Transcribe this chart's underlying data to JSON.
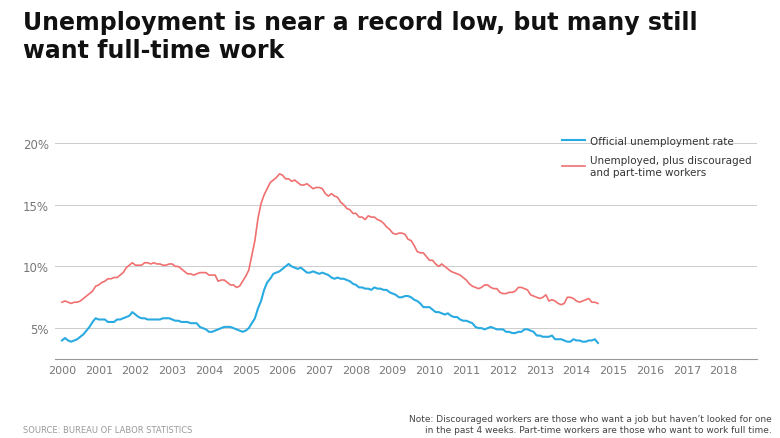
{
  "title_line1": "Unemployment is near a record low, but many still",
  "title_line2": "want full-time work",
  "title_fontsize": 17,
  "source_text": "SOURCE: BUREAU OF LABOR STATISTICS",
  "note_text": "Note: Discouraged workers are those who want a job but haven’t looked for one\nin the past 4 weeks. Part-time workers are those who want to work full time.",
  "legend_label_cyan": "Official unemployment rate",
  "legend_label_red": "Unemployed, plus discouraged\nand part-time workers",
  "cyan_color": "#29ABE2",
  "red_color": "#F07070",
  "background_color": "#FFFFFF",
  "grid_color": "#CCCCCC",
  "ylim": [
    2.5,
    21.0
  ],
  "yticks": [
    5,
    10,
    15,
    20
  ],
  "ytick_labels": [
    "5%",
    "10%",
    "15%",
    "20%"
  ],
  "xticks": [
    2000,
    2001,
    2002,
    2003,
    2004,
    2005,
    2006,
    2007,
    2008,
    2009,
    2010,
    2011,
    2012,
    2013,
    2014,
    2015,
    2016,
    2017,
    2018
  ],
  "official_unemployment": [
    4.0,
    4.2,
    4.0,
    3.9,
    4.0,
    4.1,
    4.3,
    4.5,
    4.8,
    5.1,
    5.5,
    5.8,
    5.7,
    5.7,
    5.7,
    5.5,
    5.5,
    5.5,
    5.7,
    5.7,
    5.8,
    5.9,
    6.0,
    6.3,
    6.1,
    5.9,
    5.8,
    5.8,
    5.7,
    5.7,
    5.7,
    5.7,
    5.7,
    5.8,
    5.8,
    5.8,
    5.7,
    5.6,
    5.6,
    5.5,
    5.5,
    5.5,
    5.4,
    5.4,
    5.4,
    5.1,
    5.0,
    4.9,
    4.7,
    4.7,
    4.8,
    4.9,
    5.0,
    5.1,
    5.1,
    5.1,
    5.0,
    4.9,
    4.8,
    4.7,
    4.8,
    5.0,
    5.4,
    5.8,
    6.6,
    7.2,
    8.1,
    8.7,
    9.0,
    9.4,
    9.5,
    9.6,
    9.8,
    10.0,
    10.2,
    10.0,
    9.9,
    9.8,
    9.9,
    9.7,
    9.5,
    9.5,
    9.6,
    9.5,
    9.4,
    9.5,
    9.4,
    9.3,
    9.1,
    9.0,
    9.1,
    9.0,
    9.0,
    8.9,
    8.8,
    8.6,
    8.5,
    8.3,
    8.3,
    8.2,
    8.2,
    8.1,
    8.3,
    8.2,
    8.2,
    8.1,
    8.1,
    7.9,
    7.8,
    7.7,
    7.5,
    7.5,
    7.6,
    7.6,
    7.5,
    7.3,
    7.2,
    7.0,
    6.7,
    6.7,
    6.7,
    6.5,
    6.3,
    6.3,
    6.2,
    6.1,
    6.2,
    6.0,
    5.9,
    5.9,
    5.7,
    5.6,
    5.6,
    5.5,
    5.4,
    5.1,
    5.0,
    5.0,
    4.9,
    5.0,
    5.1,
    5.0,
    4.9,
    4.9,
    4.9,
    4.7,
    4.7,
    4.6,
    4.6,
    4.7,
    4.7,
    4.9,
    4.9,
    4.8,
    4.7,
    4.4,
    4.4,
    4.3,
    4.3,
    4.3,
    4.4,
    4.1,
    4.1,
    4.1,
    4.0,
    3.9,
    3.9,
    4.1,
    4.0,
    4.0,
    3.9,
    3.9,
    4.0,
    4.0,
    4.1,
    3.8
  ],
  "broad_unemployment": [
    7.1,
    7.2,
    7.1,
    7.0,
    7.1,
    7.1,
    7.2,
    7.4,
    7.6,
    7.8,
    8.0,
    8.4,
    8.5,
    8.7,
    8.8,
    9.0,
    9.0,
    9.1,
    9.1,
    9.3,
    9.5,
    9.9,
    10.1,
    10.3,
    10.1,
    10.1,
    10.1,
    10.3,
    10.3,
    10.2,
    10.3,
    10.2,
    10.2,
    10.1,
    10.1,
    10.2,
    10.2,
    10.0,
    10.0,
    9.8,
    9.6,
    9.4,
    9.4,
    9.3,
    9.4,
    9.5,
    9.5,
    9.5,
    9.3,
    9.3,
    9.3,
    8.8,
    8.9,
    8.9,
    8.7,
    8.5,
    8.5,
    8.3,
    8.4,
    8.8,
    9.2,
    9.7,
    10.9,
    12.1,
    13.9,
    15.1,
    15.8,
    16.3,
    16.8,
    17.0,
    17.2,
    17.5,
    17.4,
    17.1,
    17.1,
    16.9,
    17.0,
    16.8,
    16.6,
    16.6,
    16.7,
    16.5,
    16.3,
    16.4,
    16.4,
    16.3,
    15.9,
    15.7,
    15.9,
    15.7,
    15.6,
    15.2,
    15.0,
    14.7,
    14.6,
    14.3,
    14.3,
    14.0,
    14.0,
    13.8,
    14.1,
    14.0,
    14.0,
    13.8,
    13.7,
    13.5,
    13.2,
    13.0,
    12.7,
    12.6,
    12.7,
    12.7,
    12.6,
    12.2,
    12.1,
    11.7,
    11.2,
    11.1,
    11.1,
    10.8,
    10.5,
    10.5,
    10.2,
    10.0,
    10.2,
    10.0,
    9.8,
    9.6,
    9.5,
    9.4,
    9.3,
    9.1,
    8.9,
    8.6,
    8.4,
    8.3,
    8.2,
    8.3,
    8.5,
    8.5,
    8.3,
    8.2,
    8.2,
    7.9,
    7.8,
    7.8,
    7.9,
    7.9,
    8.0,
    8.3,
    8.3,
    8.2,
    8.1,
    7.7,
    7.6,
    7.5,
    7.4,
    7.5,
    7.7,
    7.2,
    7.3,
    7.2,
    7.0,
    6.9,
    7.0,
    7.5,
    7.5,
    7.4,
    7.2,
    7.1,
    7.2,
    7.3,
    7.4,
    7.1,
    7.1,
    7.0
  ]
}
